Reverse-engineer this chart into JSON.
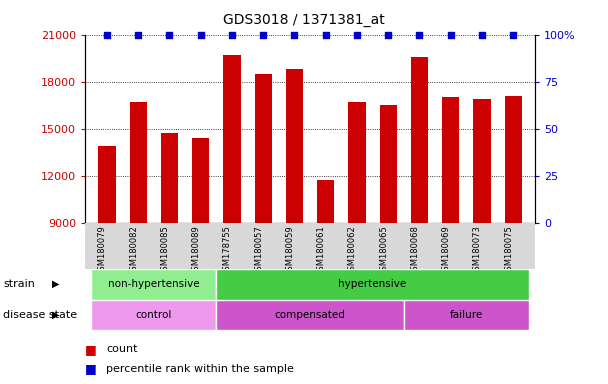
{
  "title": "GDS3018 / 1371381_at",
  "samples": [
    "GSM180079",
    "GSM180082",
    "GSM180085",
    "GSM180089",
    "GSM178755",
    "GSM180057",
    "GSM180059",
    "GSM180061",
    "GSM180062",
    "GSM180065",
    "GSM180068",
    "GSM180069",
    "GSM180073",
    "GSM180075"
  ],
  "counts": [
    13900,
    16700,
    14700,
    14400,
    19700,
    18500,
    18800,
    11700,
    16700,
    16500,
    19600,
    17000,
    16900,
    17100
  ],
  "bar_color": "#cc0000",
  "percentile_color": "#0000cc",
  "ylim_left": [
    9000,
    21000
  ],
  "ylim_right": [
    0,
    100
  ],
  "yticks_left": [
    9000,
    12000,
    15000,
    18000,
    21000
  ],
  "yticks_right": [
    0,
    25,
    50,
    75,
    100
  ],
  "strain_labels": [
    {
      "text": "non-hypertensive",
      "start": 0,
      "end": 4,
      "color": "#90ee90"
    },
    {
      "text": "hypertensive",
      "start": 4,
      "end": 14,
      "color": "#44cc44"
    }
  ],
  "disease_items": [
    {
      "text": "control",
      "start": 0,
      "end": 4,
      "color": "#ee99ee"
    },
    {
      "text": "compensated",
      "start": 4,
      "end": 10,
      "color": "#cc55cc"
    },
    {
      "text": "failure",
      "start": 10,
      "end": 14,
      "color": "#cc55cc"
    }
  ],
  "strain_row_label": "strain",
  "disease_row_label": "disease state",
  "legend_count_label": "count",
  "legend_percentile_label": "percentile rank within the sample",
  "tick_area_color": "#d8d8d8",
  "bar_width": 0.55
}
